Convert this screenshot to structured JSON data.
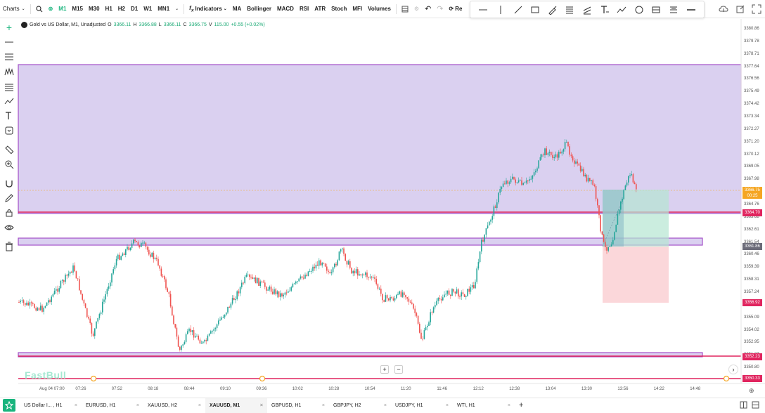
{
  "top_toolbar": {
    "charts_label": "Charts",
    "timeframes": [
      "M1",
      "M15",
      "M30",
      "H1",
      "H2",
      "D1",
      "W1",
      "MN1"
    ],
    "active_timeframe": "M1",
    "indicators_label": "Indicators",
    "indicator_shortcuts": [
      "MA",
      "Bollinger",
      "MACD",
      "RSI",
      "ATR",
      "Stoch",
      "MFI",
      "Volumes"
    ],
    "replay_label": "Re"
  },
  "legend": {
    "symbol": "Gold vs US Dollar, M1, Unadjusted",
    "o_label": "O",
    "o_value": "3366.11",
    "h_label": "H",
    "h_value": "3366.88",
    "l_label": "L",
    "l_value": "3366.11",
    "c_label": "C",
    "c_value": "3366.75",
    "v_label": "V",
    "v_value": "115.00",
    "change": "+0.55 (+0.02%)"
  },
  "price_axis": [
    "3380.86",
    "3379.78",
    "3378.71",
    "3377.64",
    "3376.56",
    "3375.49",
    "3374.42",
    "3373.34",
    "3372.27",
    "3371.20",
    "3370.12",
    "3369.05",
    "3367.98",
    "3365.83",
    "3364.76",
    "3363.68",
    "3362.61",
    "3361.54",
    "3360.46",
    "3359.39",
    "3358.31",
    "3357.24",
    "3356.17",
    "3355.09",
    "3354.02",
    "3352.95",
    "3351.87",
    "3350.80",
    "3349.73"
  ],
  "price_tags": {
    "current": "3366.75",
    "countdown": "00:25",
    "red1": "3364.70",
    "gray": "3361.86",
    "red2": "3356.92",
    "red3": "3352.23",
    "red4": "3350.33"
  },
  "colors": {
    "up": "#26a69a",
    "down": "#ef5350",
    "accent": "#19b47d",
    "zone_fill": "#d4c8ed",
    "zone_border": "#a34fc9",
    "hline": "#e0245e",
    "current_tag": "#f5a623"
  },
  "time_axis": [
    "Aug 04 07:00",
    "07:26",
    "07:52",
    "08:18",
    "08:44",
    "09:10",
    "09:36",
    "10:02",
    "10:28",
    "10:54",
    "11:20",
    "11:46",
    "12:12",
    "12:38",
    "13:04",
    "13:30",
    "13:56",
    "14:22",
    "14:48"
  ],
  "watermark": "FastBull",
  "tabs": [
    {
      "label": "US Dollar I... , H1"
    },
    {
      "label": "EURUSD, H1"
    },
    {
      "label": "XAUUSD, H2"
    },
    {
      "label": "XAUUSD, M1"
    },
    {
      "label": "GBPUSD, H1"
    },
    {
      "label": "GBPJPY, H2"
    },
    {
      "label": "USDJPY, H1"
    },
    {
      "label": "WTI, H1"
    }
  ],
  "active_tab": "XAUUSD, M1",
  "add_tab": "+"
}
